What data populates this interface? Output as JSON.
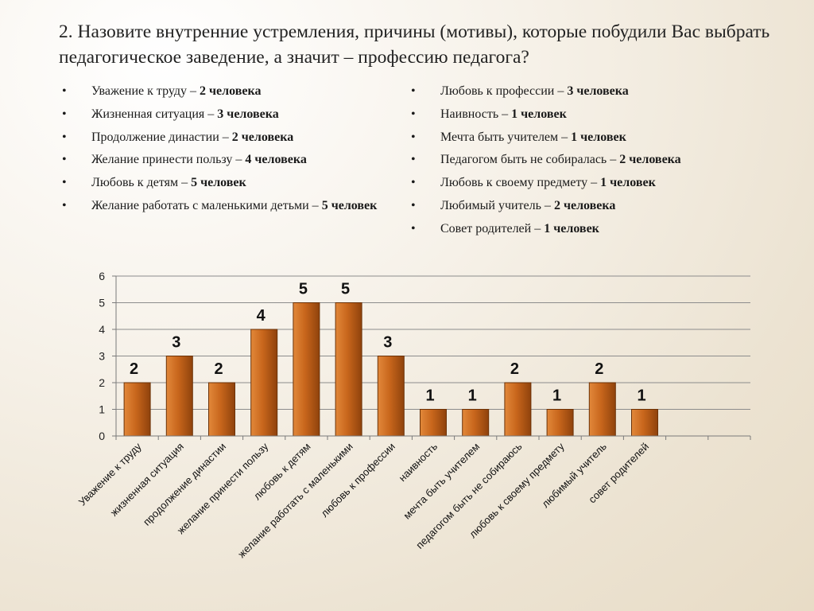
{
  "title": "2. Назовите внутренние устремления, причины (мотивы), которые побудили Вас выбрать педагогическое заведение, а значит – профессию педагога?",
  "bullet_symbol": "•",
  "left_items": [
    {
      "text": "Уважение к труду – ",
      "count": "2 человека"
    },
    {
      "text": "Жизненная ситуация – ",
      "count": "3 человека"
    },
    {
      "text": "Продолжение династии – ",
      "count": "2 человека"
    },
    {
      "text": "Желание принести пользу – ",
      "count": "4 человека"
    },
    {
      "text": "Любовь к детям – ",
      "count": "5 человек"
    },
    {
      "text": "Желание работать с маленькими детьми – ",
      "count": "5 человек"
    }
  ],
  "right_items": [
    {
      "text": "Любовь к профессии – ",
      "count": "3 человека"
    },
    {
      "text": "Наивность – ",
      "count": "1 человек"
    },
    {
      "text": "Мечта  быть учителем – ",
      "count": "1 человек"
    },
    {
      "text": "Педагогом быть не собиралась – ",
      "count": "2 человека"
    },
    {
      "text": "Любовь к своему предмету – ",
      "count": "1 человек"
    },
    {
      "text": "Любимый учитель – ",
      "count": "2 человека"
    },
    {
      "text": "Совет родителей – ",
      "count": "1 человек"
    }
  ],
  "chart_data": {
    "type": "bar",
    "categories": [
      "Уважение к труду",
      "жизненная ситуация",
      "продолжение династии",
      "желание принести пользу",
      "любовь к детям",
      "желание работать с маленькими",
      "любовь к профессии",
      "наивность",
      "мечта быть учителем",
      "педагогом быть не собираюсь",
      "любовь к своему предмету",
      "любимый учитель",
      "совет родителей",
      "",
      ""
    ],
    "values": [
      2,
      3,
      2,
      4,
      5,
      5,
      3,
      1,
      1,
      2,
      1,
      2,
      1,
      null,
      null
    ],
    "data_labels": [
      "2",
      "3",
      "2",
      "4",
      "5",
      "5",
      "3",
      "1",
      "1",
      "2",
      "1",
      "2",
      "1",
      "",
      ""
    ],
    "ylim": [
      0,
      6
    ],
    "yticks": [
      0,
      1,
      2,
      3,
      4,
      5,
      6
    ],
    "grid": true,
    "legend": "none",
    "colors": {
      "bar_top": "#e2883a",
      "bar_mid": "#c8661c",
      "bar_bottom": "#8f420c",
      "bar_stroke": "#6b3208",
      "grid": "#8c8c8c",
      "axis": "#7a7a7a"
    }
  }
}
